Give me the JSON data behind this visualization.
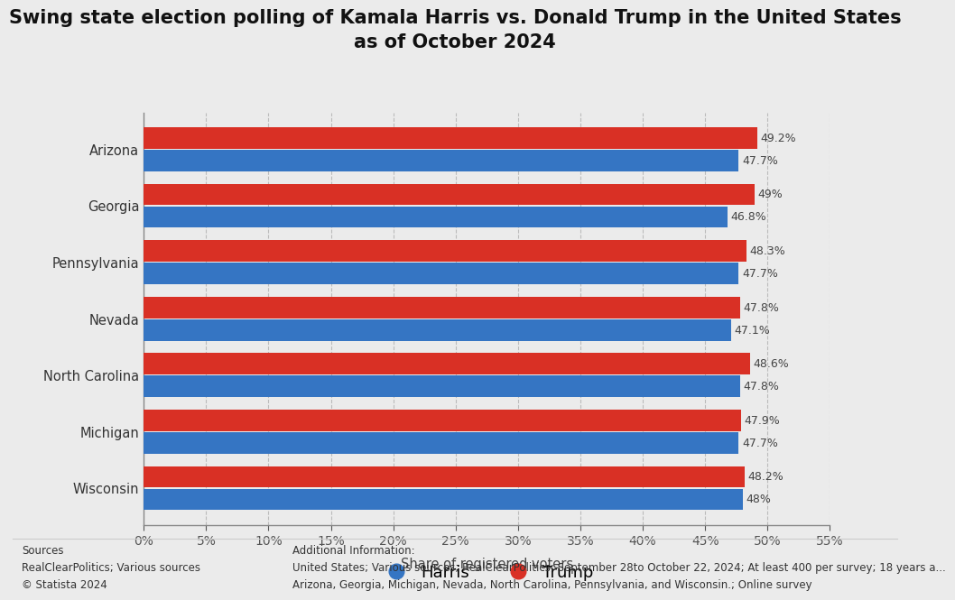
{
  "title_line1": "Swing state election polling of Kamala Harris vs. Donald Trump in the United States",
  "title_line2": "as of October 2024",
  "states": [
    "Wisconsin",
    "Michigan",
    "North Carolina",
    "Nevada",
    "Pennsylvania",
    "Georgia",
    "Arizona"
  ],
  "harris_values": [
    48.0,
    47.7,
    47.8,
    47.1,
    47.7,
    46.8,
    47.7
  ],
  "trump_values": [
    48.2,
    47.9,
    48.6,
    47.8,
    48.3,
    49.0,
    49.2
  ],
  "harris_labels": [
    "48%",
    "47.7%",
    "47.8%",
    "47.1%",
    "47.7%",
    "46.8%",
    "47.7%"
  ],
  "trump_labels": [
    "48.2%",
    "47.9%",
    "48.6%",
    "47.8%",
    "48.3%",
    "49%",
    "49.2%"
  ],
  "harris_color": "#3575c3",
  "trump_color": "#d93025",
  "background_color": "#ebebeb",
  "xlabel": "Share of registered voters",
  "xlim_min": 0,
  "xlim_max": 55,
  "xticks": [
    0,
    5,
    10,
    15,
    20,
    25,
    30,
    35,
    40,
    45,
    50,
    55
  ],
  "bar_height": 0.38,
  "bar_gap": 0.02,
  "title_fontsize": 15,
  "label_fontsize": 10.5,
  "tick_fontsize": 10,
  "value_fontsize": 9,
  "legend_labels": [
    "Harris",
    "Trump"
  ],
  "sources_text": "Sources\nRealClearPolitics; Various sources\n© Statista 2024",
  "additional_info_line1": "Additional Information:",
  "additional_info_line2": "United States; Various sources; RealClearPolitics; September 28to October 22, 2024; At least 400 per survey; 18 years a...",
  "additional_info_line3": "Arizona, Georgia, Michigan, Nevada, North Carolina, Pennsylvania, and Wisconsin.; Online survey"
}
